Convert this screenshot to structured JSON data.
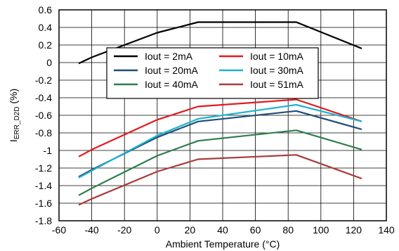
{
  "chart_data": {
    "type": "line",
    "xlabel": "Ambient Temperature (°C)",
    "ylabel_main": "I",
    "ylabel_sub": "ERR_D2D",
    "ylabel_suffix": " (%)",
    "xlim": [
      -60,
      140
    ],
    "ylim": [
      -1.8,
      0.6
    ],
    "xticks": [
      "-60",
      "-40",
      "-20",
      "0",
      "20",
      "40",
      "60",
      "80",
      "100",
      "120",
      "140"
    ],
    "yticks": [
      "0.6",
      "0.4",
      "0.2",
      "0",
      "-0.2",
      "-0.4",
      "-0.6",
      "-0.8",
      "-1",
      "-1.2",
      "-1.4",
      "-1.6",
      "-1.8"
    ],
    "grid": true,
    "legend_position": "top-center",
    "x": [
      -48,
      -40,
      0,
      25,
      85,
      125
    ],
    "series": [
      {
        "name": "Iout = 2mA",
        "color": "#000000",
        "values": [
          -0.01,
          0.06,
          0.34,
          0.46,
          0.46,
          0.16
        ]
      },
      {
        "name": "Iout = 10mA",
        "color": "#e41a1c",
        "values": [
          -1.07,
          -0.99,
          -0.65,
          -0.5,
          -0.42,
          -0.67
        ]
      },
      {
        "name": "Iout = 20mA",
        "color": "#1f4e79",
        "values": [
          -1.3,
          -1.22,
          -0.85,
          -0.67,
          -0.55,
          -0.76
        ]
      },
      {
        "name": "Iout = 30mA",
        "color": "#1cb5cf",
        "values": [
          -1.31,
          -1.23,
          -0.83,
          -0.64,
          -0.48,
          -0.67
        ]
      },
      {
        "name": "Iout = 40mA",
        "color": "#2e7d4f",
        "values": [
          -1.51,
          -1.43,
          -1.06,
          -0.89,
          -0.77,
          -0.99
        ]
      },
      {
        "name": "Iout = 51mA",
        "color": "#a93b3b",
        "values": [
          -1.62,
          -1.55,
          -1.24,
          -1.1,
          -1.05,
          -1.32
        ]
      }
    ]
  }
}
